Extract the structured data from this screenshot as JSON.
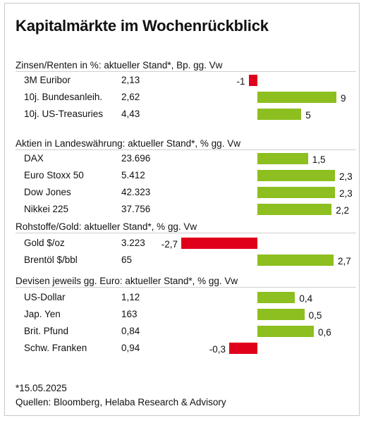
{
  "title": "Kapitalmärkte im Wochenrückblick",
  "colors": {
    "positive": "#8cbf1f",
    "negative": "#e1001a"
  },
  "chart_data": {
    "type": "bar",
    "orientation": "horizontal",
    "groups": [
      {
        "title": "Zinsen/Renten in %: aktueller Stand*, Bp. gg. Vw",
        "rows": [
          {
            "name": "3M Euribor",
            "value": "2,13",
            "change": -1,
            "change_label": "-1"
          },
          {
            "name": "10j. Bundesanleih.",
            "value": "2,62",
            "change": 9,
            "change_label": "9"
          },
          {
            "name": "10j. US-Treasuries",
            "value": "4,43",
            "change": 5,
            "change_label": "5"
          }
        ]
      },
      {
        "title": "Aktien in Landeswährung: aktueller Stand*, % gg. Vw",
        "rows": [
          {
            "name": "DAX",
            "value": "23.696",
            "change": 1.5,
            "change_label": "1,5"
          },
          {
            "name": "Euro Stoxx 50",
            "value": "5.412",
            "change": 2.3,
            "change_label": "2,3"
          },
          {
            "name": "Dow Jones",
            "value": "42.323",
            "change": 2.3,
            "change_label": "2,3"
          },
          {
            "name": "Nikkei 225",
            "value": "37.756",
            "change": 2.2,
            "change_label": "2,2"
          }
        ]
      },
      {
        "title": "Rohstoffe/Gold: aktueller Stand*, % gg. Vw",
        "rows": [
          {
            "name": "Gold $/oz",
            "value": "3.223",
            "change": -2.7,
            "change_label": "-2,7"
          },
          {
            "name": "Brentöl $/bbl",
            "value": "65",
            "change": 2.7,
            "change_label": "2,7"
          }
        ]
      },
      {
        "title": "Devisen jeweils gg. Euro: aktueller Stand*, % gg. Vw",
        "rows": [
          {
            "name": "US-Dollar",
            "value": "1,12",
            "change": 0.4,
            "change_label": "0,4"
          },
          {
            "name": "Jap. Yen",
            "value": "163",
            "change": 0.5,
            "change_label": "0,5"
          },
          {
            "name": "Brit. Pfund",
            "value": "0,84",
            "change": 0.6,
            "change_label": "0,6"
          },
          {
            "name": "Schw. Franken",
            "value": "0,94",
            "change": -0.3,
            "change_label": "-0,3"
          }
        ]
      }
    ]
  },
  "footnote_date": "*15.05.2025",
  "footnote_sources": "Quellen: Bloomberg, Helaba Research & Advisory"
}
